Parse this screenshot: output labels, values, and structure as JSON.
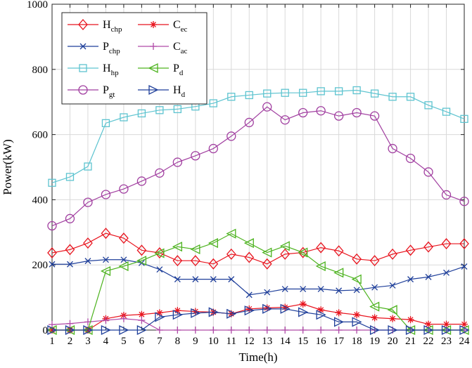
{
  "chart_data": {
    "type": "line",
    "xlabel": "Time(h)",
    "ylabel": "Power(kW)",
    "xlim": [
      1,
      24
    ],
    "ylim": [
      0,
      1000
    ],
    "x": [
      1,
      2,
      3,
      4,
      5,
      6,
      7,
      8,
      9,
      10,
      11,
      12,
      13,
      14,
      15,
      16,
      17,
      18,
      19,
      20,
      21,
      22,
      23,
      24
    ],
    "xticks": [
      "1",
      "2",
      "3",
      "4",
      "5",
      "6",
      "7",
      "8",
      "9",
      "10",
      "11",
      "12",
      "13",
      "14",
      "15",
      "16",
      "17",
      "18",
      "19",
      "20",
      "21",
      "22",
      "23",
      "24"
    ],
    "yticks": [
      "0",
      "200",
      "400",
      "600",
      "800",
      "1000"
    ],
    "grid": true,
    "legend_position": "top-left",
    "series": [
      {
        "name": "H",
        "sub": "chp",
        "color": "#e8141e",
        "marker": "diamond",
        "values": [
          237,
          247,
          267,
          297,
          282,
          245,
          237,
          213,
          213,
          203,
          233,
          223,
          203,
          233,
          238,
          253,
          243,
          218,
          213,
          233,
          245,
          255,
          265,
          265
        ]
      },
      {
        "name": "P",
        "sub": "chp",
        "color": "#1f3f9a",
        "marker": "x",
        "values": [
          202,
          202,
          212,
          216,
          216,
          206,
          186,
          156,
          156,
          156,
          156,
          108,
          116,
          126,
          126,
          126,
          121,
          123,
          131,
          137,
          156,
          163,
          176,
          195
        ]
      },
      {
        "name": "H",
        "sub": "hp",
        "color": "#5ec4d0",
        "marker": "square",
        "values": [
          452,
          470,
          502,
          635,
          653,
          665,
          675,
          678,
          686,
          696,
          716,
          721,
          726,
          728,
          728,
          733,
          733,
          736,
          726,
          716,
          716,
          690,
          670,
          648
        ]
      },
      {
        "name": "P",
        "sub": "gt",
        "color": "#a13fa0",
        "marker": "circle",
        "values": [
          320,
          342,
          392,
          416,
          433,
          457,
          482,
          515,
          535,
          557,
          595,
          637,
          685,
          645,
          667,
          673,
          657,
          667,
          657,
          557,
          527,
          485,
          415,
          395
        ]
      },
      {
        "name": "C",
        "sub": "ec",
        "color": "#e8141e",
        "marker": "asterisk",
        "values": [
          0,
          0,
          0,
          35,
          45,
          48,
          53,
          60,
          57,
          55,
          50,
          65,
          68,
          70,
          80,
          62,
          53,
          47,
          38,
          35,
          32,
          18,
          18,
          18
        ]
      },
      {
        "name": "C",
        "sub": "ac",
        "color": "#b04aa8",
        "marker": "plus",
        "values": [
          17,
          20,
          25,
          30,
          35,
          30,
          0,
          0,
          0,
          0,
          0,
          0,
          0,
          0,
          0,
          0,
          0,
          0,
          0,
          0,
          0,
          0,
          0,
          0
        ]
      },
      {
        "name": "P",
        "sub": "d",
        "color": "#4db31f",
        "marker": "triangle-left",
        "values": [
          0,
          0,
          0,
          181,
          196,
          213,
          236,
          256,
          248,
          267,
          296,
          267,
          238,
          258,
          238,
          196,
          176,
          156,
          72,
          62,
          0,
          0,
          0,
          0
        ]
      },
      {
        "name": "H",
        "sub": "d",
        "color": "#1f3f9a",
        "marker": "triangle-right",
        "values": [
          0,
          0,
          0,
          0,
          0,
          0,
          40,
          47,
          52,
          55,
          50,
          60,
          65,
          65,
          55,
          47,
          25,
          25,
          0,
          0,
          0,
          0,
          0,
          0
        ]
      }
    ]
  }
}
